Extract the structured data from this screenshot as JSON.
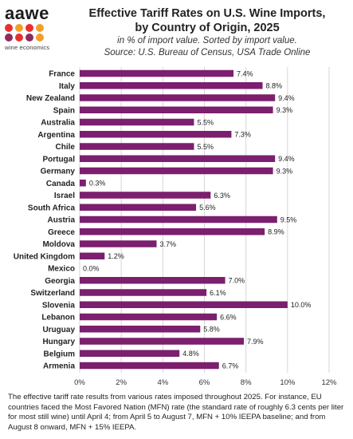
{
  "logo": {
    "word": "aawe",
    "sub": "wine economics",
    "dot_colors": [
      "#e8312f",
      "#f0a02a",
      "#e8312f",
      "#f0a02a",
      "#8e2a5c",
      "#e8312f",
      "#8e2a5c",
      "#f0a02a"
    ]
  },
  "chart_data": {
    "type": "bar",
    "orientation": "horizontal",
    "title": "Effective Tariff Rates on U.S. Wine Imports, by Country of Origin, 2025",
    "title_lines": [
      "Effective Tariff Rates on U.S. Wine Imports,",
      "by Country of Origin, 2025"
    ],
    "subtitle_lines": [
      "in % of import value. Sorted by import value.",
      "Source: U.S. Bureau of Census, USA Trade Online"
    ],
    "categories": [
      "France",
      "Italy",
      "New Zealand",
      "Spain",
      "Australia",
      "Argentina",
      "Chile",
      "Portugal",
      "Germany",
      "Canada",
      "Israel",
      "South Africa",
      "Austria",
      "Greece",
      "Moldova",
      "United Kingdom",
      "Mexico",
      "Georgia",
      "Switzerland",
      "Slovenia",
      "Lebanon",
      "Uruguay",
      "Hungary",
      "Belgium",
      "Armenia"
    ],
    "values": [
      7.4,
      8.8,
      9.4,
      9.3,
      5.5,
      7.3,
      5.5,
      9.4,
      9.3,
      0.3,
      6.3,
      5.6,
      9.5,
      8.9,
      3.7,
      1.2,
      0.0,
      7.0,
      6.1,
      10.0,
      6.6,
      5.8,
      7.9,
      4.8,
      6.7
    ],
    "data_labels": [
      "7.4%",
      "8.8%",
      "9.4%",
      "9.3%",
      "5.5%",
      "7.3%",
      "5.5%",
      "9.4%",
      "9.3%",
      "0.3%",
      "6.3%",
      "5.6%",
      "9.5%",
      "8.9%",
      "3.7%",
      "1.2%",
      "0.0%",
      "7.0%",
      "6.1%",
      "10.0%",
      "6.6%",
      "5.8%",
      "7.9%",
      "4.8%",
      "6.7%"
    ],
    "xlim": [
      0,
      12
    ],
    "xticks": [
      0,
      2,
      4,
      6,
      8,
      10,
      12
    ],
    "xtick_labels": [
      "0%",
      "2%",
      "4%",
      "6%",
      "8%",
      "10%",
      "12%"
    ],
    "grid": true,
    "bar_color": "#7b1f6e",
    "grid_color": "#d6d6d6"
  },
  "footer": {
    "note": "The effective tariff rate results from various rates imposed throughout 2025. For instance, EU countries faced the Most Favored Nation (MFN) rate (the standard rate of roughly 6.3 cents per liter for most still wine) until April 4; from April 5 to August 7, MFN + 10% IEEPA baseline; and from August 8 onward, MFN + 15% IEEPA."
  }
}
